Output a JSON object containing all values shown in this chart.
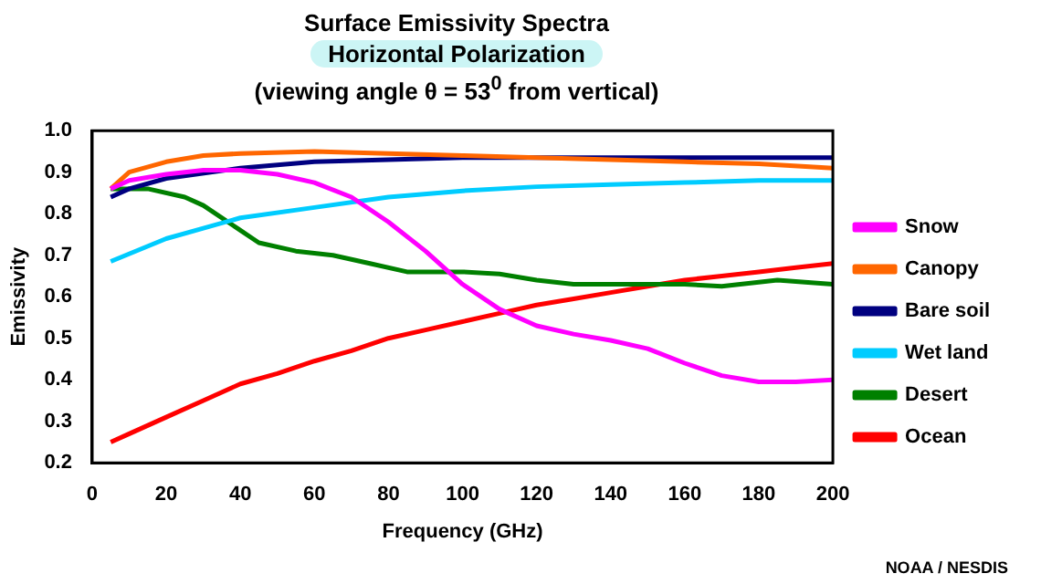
{
  "chart_data": {
    "type": "line",
    "title": "Surface Emissivity Spectra",
    "subtitle": "Horizontal Polarization\n(viewing angle θ = 53$^{0}$ from vertical)",
    "xlabel": "Frequency (GHz)",
    "ylabel": "Emissivity",
    "xlim": [
      0,
      200
    ],
    "xticks": [
      0,
      20,
      40,
      60,
      80,
      100,
      120,
      140,
      160,
      180,
      200
    ],
    "ylim": [
      0.2,
      1.0
    ],
    "yticks": [
      0.2,
      0.3,
      0.4,
      0.5,
      0.6,
      0.7,
      0.8,
      0.9,
      {
        "value": 1.0,
        "label": "1.0"
      }
    ],
    "grid": false,
    "legend": "right",
    "marker": "none",
    "line_style": "solid",
    "annotations": [
      "NOAA / NESDIS"
    ],
    "series": [
      {
        "name": "Snow",
        "color": "#ff00ff",
        "x": [
          5,
          10,
          20,
          30,
          40,
          50,
          60,
          70,
          80,
          90,
          100,
          110,
          120,
          130,
          140,
          150,
          160,
          170,
          180,
          190,
          200
        ],
        "values": [
          0.86,
          0.88,
          0.895,
          0.905,
          0.905,
          0.895,
          0.875,
          0.84,
          0.78,
          0.71,
          0.63,
          0.57,
          0.53,
          0.51,
          0.495,
          0.475,
          0.44,
          0.41,
          0.395,
          0.395,
          0.4
        ]
      },
      {
        "name": "Canopy",
        "color": "#ff6600",
        "x": [
          5,
          10,
          20,
          30,
          40,
          60,
          80,
          100,
          120,
          140,
          160,
          180,
          200
        ],
        "values": [
          0.86,
          0.9,
          0.925,
          0.94,
          0.945,
          0.95,
          0.945,
          0.94,
          0.935,
          0.93,
          0.925,
          0.92,
          0.91
        ]
      },
      {
        "name": "Bare soil",
        "color": "#000080",
        "x": [
          5,
          10,
          20,
          40,
          60,
          80,
          100,
          200
        ],
        "values": [
          0.84,
          0.86,
          0.885,
          0.91,
          0.925,
          0.93,
          0.935,
          0.935
        ]
      },
      {
        "name": "Wet land",
        "color": "#00ccff",
        "x": [
          5,
          20,
          40,
          60,
          80,
          100,
          120,
          140,
          160,
          180,
          200
        ],
        "values": [
          0.685,
          0.74,
          0.79,
          0.815,
          0.84,
          0.855,
          0.865,
          0.87,
          0.875,
          0.88,
          0.88
        ]
      },
      {
        "name": "Desert",
        "color": "#008000",
        "x": [
          5,
          15,
          25,
          30,
          40,
          45,
          55,
          65,
          75,
          85,
          100,
          110,
          120,
          130,
          140,
          160,
          170,
          185,
          200
        ],
        "values": [
          0.86,
          0.86,
          0.84,
          0.82,
          0.76,
          0.73,
          0.71,
          0.7,
          0.68,
          0.66,
          0.66,
          0.655,
          0.64,
          0.63,
          0.63,
          0.63,
          0.625,
          0.64,
          0.63
        ]
      },
      {
        "name": "Ocean",
        "color": "#ff0000",
        "x": [
          5,
          10,
          20,
          30,
          40,
          50,
          60,
          70,
          80,
          90,
          100,
          110,
          120,
          130,
          140,
          150,
          160,
          170,
          180,
          190,
          200
        ],
        "values": [
          0.25,
          0.27,
          0.31,
          0.35,
          0.39,
          0.415,
          0.445,
          0.47,
          0.5,
          0.52,
          0.54,
          0.56,
          0.58,
          0.595,
          0.61,
          0.625,
          0.64,
          0.65,
          0.66,
          0.67,
          0.68
        ]
      }
    ]
  }
}
